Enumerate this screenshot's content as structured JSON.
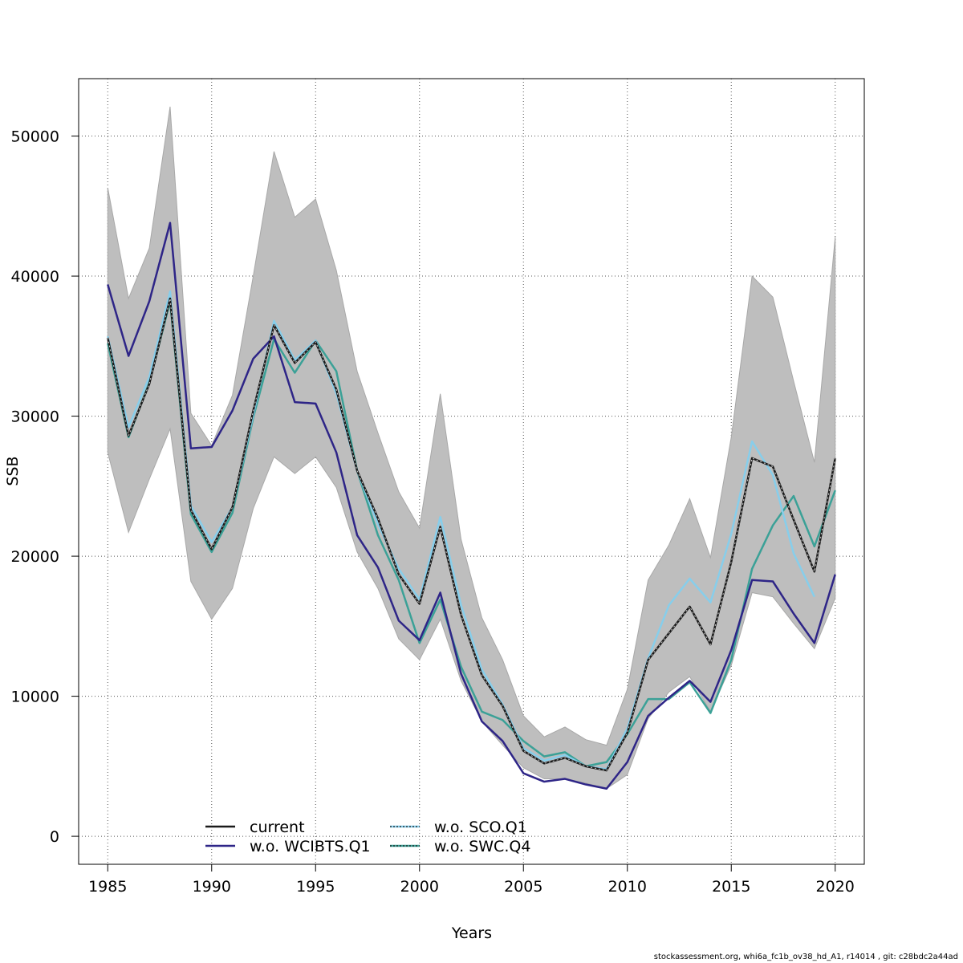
{
  "chart_data": {
    "type": "line",
    "xlabel": "Years",
    "ylabel": "SSB",
    "xlim": [
      1983.6,
      2021.4
    ],
    "ylim": [
      -2000,
      54100
    ],
    "grid": true,
    "x_ticks": [
      1985,
      1990,
      1995,
      2000,
      2005,
      2010,
      2015,
      2020
    ],
    "y_ticks": [
      0,
      10000,
      20000,
      30000,
      40000,
      50000
    ],
    "x": [
      1985,
      1986,
      1987,
      1988,
      1989,
      1990,
      1991,
      1992,
      1993,
      1994,
      1995,
      1996,
      1997,
      1998,
      1999,
      2000,
      2001,
      2002,
      2003,
      2004,
      2005,
      2006,
      2007,
      2008,
      2009,
      2010,
      2011,
      2012,
      2013,
      2014,
      2015,
      2016,
      2017,
      2018,
      2019,
      2020
    ],
    "confidence_band": {
      "upper": [
        46300,
        38400,
        42000,
        52100,
        30200,
        27900,
        31500,
        40000,
        48900,
        44200,
        45500,
        40400,
        33200,
        28800,
        24600,
        22000,
        31600,
        21200,
        15600,
        12600,
        8600,
        7100,
        7800,
        6900,
        6500,
        10500,
        18300,
        20800,
        24100,
        19900,
        28500,
        40000,
        38500,
        32500,
        26700,
        42800
      ],
      "lower": [
        27400,
        21700,
        25500,
        29100,
        18200,
        15500,
        17700,
        23400,
        27100,
        25900,
        27100,
        24900,
        20300,
        17700,
        14100,
        12600,
        15500,
        11100,
        8200,
        6500,
        4900,
        4100,
        4100,
        3800,
        3400,
        4400,
        8400,
        10300,
        11400,
        8900,
        12200,
        17400,
        17100,
        15200,
        13400,
        17000
      ],
      "color": "#bebebe"
    },
    "series": [
      {
        "name": "current",
        "color": "#1a1a1a",
        "values": [
          35600,
          28600,
          32300,
          38400,
          23300,
          20500,
          23500,
          30400,
          36500,
          33800,
          35300,
          31900,
          26100,
          22700,
          18700,
          16600,
          22100,
          15800,
          11500,
          9300,
          6100,
          5200,
          5600,
          5000,
          4700,
          7400,
          12600,
          14500,
          16400,
          13700,
          19600,
          27000,
          26400,
          22600,
          18900,
          27000
        ]
      },
      {
        "name": "w.o. WCIBTS.Q1",
        "color": "#2e2587",
        "values": [
          39400,
          34300,
          38200,
          43800,
          27700,
          27800,
          30400,
          34100,
          35700,
          31000,
          30900,
          27400,
          21500,
          19200,
          15400,
          14000,
          17400,
          11600,
          8200,
          6800,
          4500,
          3900,
          4100,
          3700,
          3400,
          5300,
          8600,
          9900,
          11100,
          9600,
          13300,
          18300,
          18200,
          15900,
          13800,
          18700
        ]
      },
      {
        "name": "w.o. SCO.Q1",
        "color": "#87ceeb",
        "values": [
          35700,
          29200,
          32800,
          38900,
          23600,
          21000,
          23500,
          30100,
          36800,
          34000,
          35400,
          31600,
          26100,
          22300,
          19100,
          16900,
          22800,
          16500,
          11900,
          9400,
          6300,
          5400,
          5800,
          5000,
          4800,
          7700,
          12700,
          16500,
          18400,
          16700,
          21600,
          28200,
          25800,
          20200,
          17100,
          null
        ]
      },
      {
        "name": "w.o. SWC.Q4",
        "color": "#3ba197",
        "values": [
          35200,
          28500,
          32400,
          38200,
          23000,
          20300,
          23100,
          29900,
          35500,
          33100,
          35400,
          33200,
          26100,
          21500,
          18300,
          13800,
          16900,
          12100,
          8900,
          8300,
          6800,
          5700,
          6000,
          5000,
          5300,
          7300,
          9800,
          9800,
          11000,
          8800,
          12600,
          19100,
          22200,
          24300,
          20700,
          24700
        ]
      }
    ]
  },
  "footer": "stockassessment.org, whi6a_fc1b_ov38_hd_A1, r14014 , git: c28bdc2a44ad"
}
